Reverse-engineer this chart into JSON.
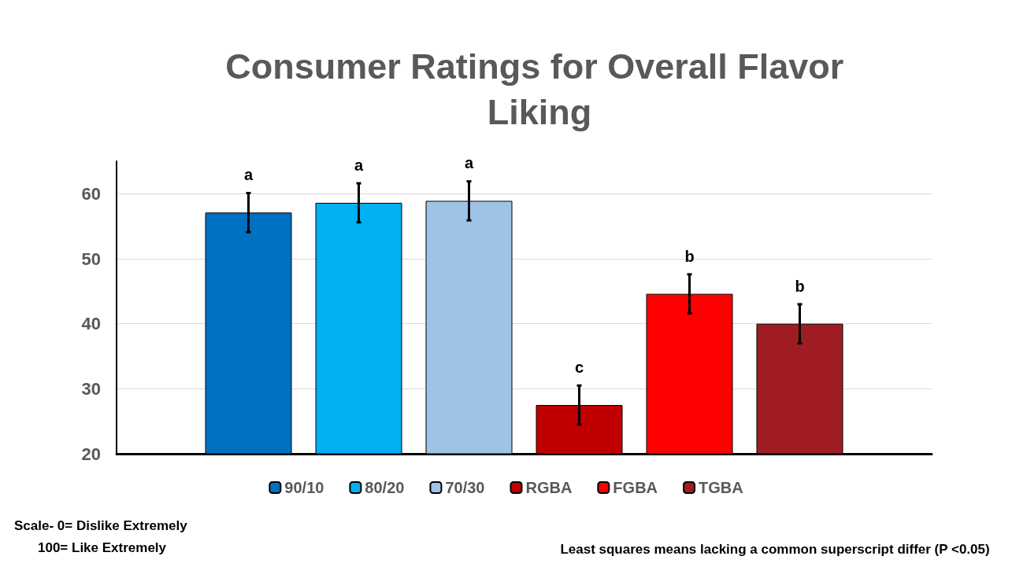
{
  "chart_data": {
    "type": "bar",
    "title": "Consumer Ratings for Overall Flavor Liking",
    "categories": [
      null
    ],
    "series": [
      {
        "name": "90/10",
        "color": "#0070c0",
        "values": [
          57.1
        ],
        "errors": [
          3
        ],
        "value_labels": [
          "a"
        ]
      },
      {
        "name": "80/20",
        "color": "#00b0f0",
        "values": [
          58.6
        ],
        "errors": [
          3
        ],
        "value_labels": [
          "a"
        ]
      },
      {
        "name": "70/30",
        "color": "#9dc3e6",
        "values": [
          58.9
        ],
        "errors": [
          3
        ],
        "value_labels": [
          "a"
        ]
      },
      {
        "name": "RGBA",
        "color": "#c00000",
        "values": [
          27.5
        ],
        "errors": [
          3
        ],
        "value_labels": [
          "c"
        ]
      },
      {
        "name": "FGBA",
        "color": "#ff0000",
        "values": [
          44.6
        ],
        "errors": [
          3
        ],
        "value_labels": [
          "b"
        ]
      },
      {
        "name": "TGBA",
        "color": "#9e1c22",
        "values": [
          40.0
        ],
        "errors": [
          3
        ],
        "value_labels": [
          "b"
        ]
      }
    ],
    "ylim": [
      20,
      65
    ],
    "yticks": [
      20,
      30,
      40,
      50,
      60
    ],
    "grid": "y",
    "legend": "bottom",
    "tick_labels": "y",
    "annotations": [
      "Scale- 0= Dislike Extremely",
      "100= Like Extremely",
      "Least squares means lacking a common superscript differ (P <0.05)"
    ]
  }
}
